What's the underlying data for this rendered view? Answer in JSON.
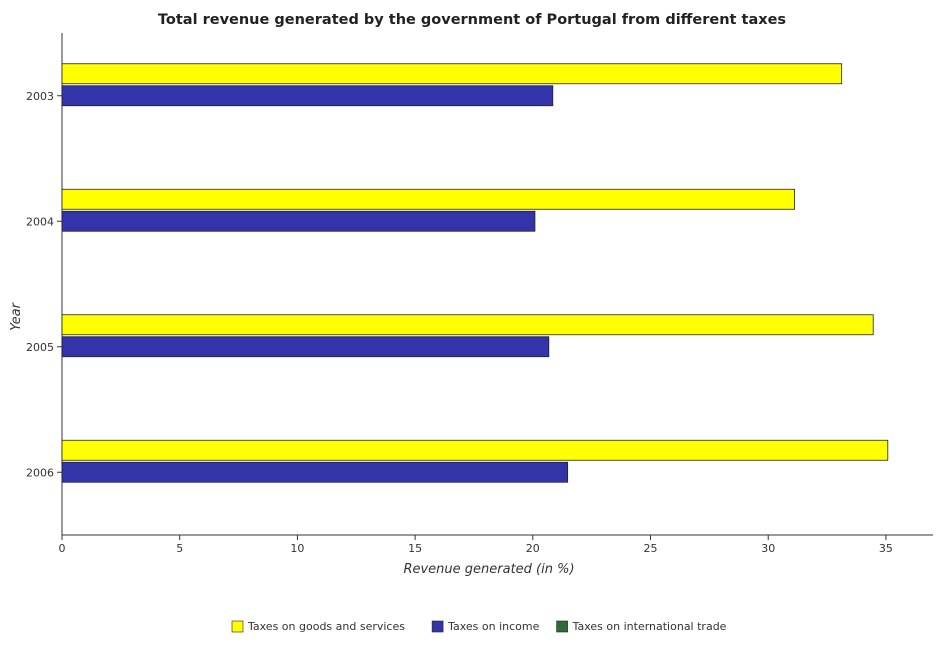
{
  "title": "Total revenue generated by the government of Portugal from different taxes",
  "chart_data": {
    "type": "bar",
    "orientation": "horizontal",
    "title": "Total revenue generated by the government of Portugal from different taxes",
    "xlabel": "Revenue generated (in %)",
    "ylabel": "Year",
    "categories": [
      "2003",
      "2004",
      "2005",
      "2006"
    ],
    "xlim": [
      0,
      37
    ],
    "xticks": [
      "0",
      "5",
      "10",
      "15",
      "20",
      "25",
      "30",
      "35"
    ],
    "grid": false,
    "legend_position": "bottom-center",
    "series": [
      {
        "name": "Taxes on goods and services",
        "color": "#ffff00",
        "values": [
          33.12,
          31.12,
          34.46,
          35.08
        ]
      },
      {
        "name": "Taxes on income",
        "color": "#3333aa",
        "values": [
          20.85,
          20.09,
          20.68,
          21.48
        ]
      },
      {
        "name": "Taxes on international trade",
        "color": "#2e6b3a",
        "values": [
          0.0,
          0.0,
          0.0,
          0.0
        ]
      }
    ]
  }
}
